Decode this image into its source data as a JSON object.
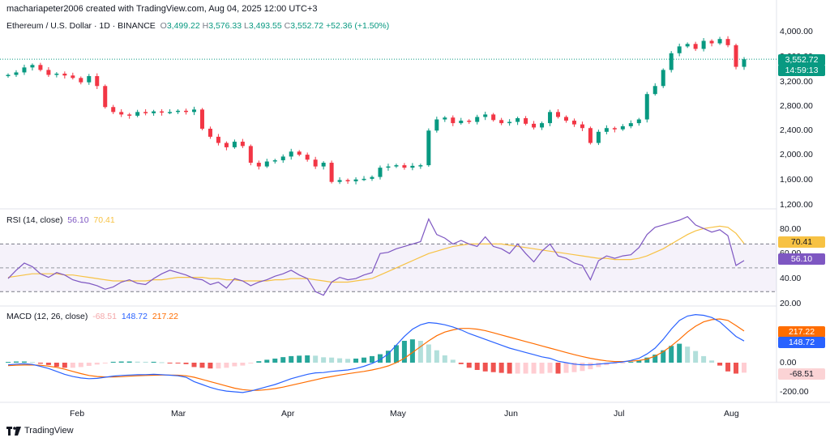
{
  "header": {
    "credit": "machariapeter2006 created with TradingView.com, Aug 04, 2025 12:00 UTC+3"
  },
  "symbol": {
    "name": "Ethereum / U.S. Dollar · 1D · BINANCE",
    "o_label": "O",
    "o": "3,499.22",
    "h_label": "H",
    "h": "3,576.33",
    "l_label": "L",
    "l": "3,493.55",
    "c_label": "C",
    "c": "3,552.72",
    "chg": "+52.36 (+1.50%)"
  },
  "price_axis": [
    "4,000.00",
    "3,600.00",
    "3,200.00",
    "2,800.00",
    "2,400.00",
    "2,000.00",
    "1,600.00",
    "1,200.00"
  ],
  "price_tag": {
    "value": "3,552.72",
    "countdown": "14:59:13"
  },
  "rsi": {
    "title": "RSI (14, close)",
    "v1": "56.10",
    "v2": "70.41",
    "axis": [
      "80.00",
      "60.00",
      "40.00",
      "20.00"
    ]
  },
  "macd": {
    "title": "MACD (12, 26, close)",
    "hist": "-68.51",
    "macd": "148.72",
    "signal": "217.22",
    "axis": [
      "0.00",
      "-200.00"
    ]
  },
  "months": [
    "Feb",
    "Mar",
    "Apr",
    "May",
    "Jun",
    "Jul",
    "Aug"
  ],
  "footer": {
    "brand": "TradingView"
  },
  "colors": {
    "up": "#089981",
    "down": "#f23645",
    "rsi": "#7e57c2",
    "rsi_ma": "#f7c244",
    "macd": "#2962ff",
    "signal": "#ff6d00",
    "hist_up": "#26a69a",
    "hist_down": "#ef5350"
  },
  "chart_data": {
    "type": "candlestick",
    "x_range": [
      "Jan 2025",
      "Aug 2025"
    ],
    "y_range": [
      1200,
      4000
    ],
    "closes": [
      3300,
      3340,
      3420,
      3460,
      3380,
      3300,
      3320,
      3290,
      3250,
      3180,
      3280,
      3120,
      2780,
      2700,
      2660,
      2640,
      2700,
      2680,
      2710,
      2690,
      2700,
      2720,
      2700,
      2740,
      2430,
      2300,
      2200,
      2130,
      2220,
      2150,
      1880,
      1820,
      1900,
      1920,
      1980,
      2060,
      2010,
      1930,
      1820,
      1880,
      1570,
      1600,
      1580,
      1610,
      1620,
      1650,
      1800,
      1820,
      1840,
      1800,
      1830,
      1840,
      2400,
      2580,
      2610,
      2520,
      2560,
      2540,
      2620,
      2660,
      2570,
      2520,
      2540,
      2600,
      2510,
      2450,
      2520,
      2700,
      2620,
      2560,
      2500,
      2440,
      2200,
      2380,
      2440,
      2420,
      2470,
      2520,
      2580,
      2990,
      3120,
      3380,
      3650,
      3760,
      3800,
      3720,
      3850,
      3810,
      3880,
      3780,
      3430,
      3552.72
    ],
    "rsi": [
      41,
      48,
      54,
      51,
      45,
      42,
      46,
      44,
      40,
      38,
      37,
      35,
      32,
      34,
      38,
      40,
      37,
      36,
      41,
      45,
      48,
      46,
      44,
      41,
      40,
      36,
      38,
      33,
      41,
      39,
      35,
      38,
      40,
      43,
      45,
      48,
      44,
      41,
      30,
      27,
      38,
      42,
      40,
      41,
      44,
      46,
      62,
      63,
      66,
      68,
      70,
      72,
      91,
      78,
      75,
      70,
      73,
      70,
      68,
      76,
      68,
      66,
      62,
      70,
      62,
      55,
      64,
      70,
      60,
      58,
      54,
      52,
      40,
      56,
      60,
      58,
      60,
      61,
      67,
      78,
      84,
      86,
      88,
      90,
      93,
      86,
      83,
      80,
      82,
      77,
      52,
      56.1
    ],
    "rsi_ma": [
      42,
      43,
      44,
      45,
      45,
      45,
      45,
      44,
      44,
      43,
      42,
      41,
      40,
      39,
      39,
      39,
      39,
      39,
      40,
      40,
      41,
      42,
      42,
      42,
      42,
      41,
      41,
      40,
      40,
      39,
      39,
      39,
      39,
      40,
      40,
      41,
      41,
      41,
      40,
      39,
      38,
      38,
      38,
      39,
      40,
      41,
      44,
      47,
      50,
      53,
      56,
      59,
      62,
      64,
      66,
      68,
      69,
      70,
      70,
      70,
      70,
      70,
      69,
      68,
      67,
      66,
      65,
      64,
      63,
      62,
      61,
      60,
      59,
      58,
      58,
      57,
      57,
      57,
      58,
      60,
      63,
      66,
      70,
      74,
      78,
      81,
      83,
      84,
      85,
      84,
      79,
      70.41
    ],
    "macd": [
      -15,
      -10,
      -8,
      -12,
      -25,
      -40,
      -60,
      -80,
      -95,
      -105,
      -110,
      -108,
      -100,
      -92,
      -88,
      -85,
      -83,
      -82,
      -80,
      -82,
      -86,
      -90,
      -100,
      -130,
      -150,
      -170,
      -185,
      -195,
      -200,
      -205,
      -195,
      -180,
      -165,
      -150,
      -130,
      -110,
      -95,
      -80,
      -70,
      -68,
      -60,
      -55,
      -50,
      -40,
      -25,
      -5,
      20,
      60,
      120,
      180,
      230,
      260,
      275,
      270,
      260,
      245,
      225,
      200,
      180,
      160,
      140,
      120,
      100,
      85,
      70,
      55,
      40,
      30,
      10,
      0,
      -10,
      -15,
      -15,
      -10,
      -5,
      0,
      5,
      15,
      30,
      60,
      100,
      160,
      230,
      290,
      320,
      330,
      325,
      310,
      280,
      230,
      180,
      148.72
    ],
    "signal": [
      -20,
      -18,
      -16,
      -16,
      -18,
      -24,
      -32,
      -45,
      -60,
      -75,
      -88,
      -95,
      -98,
      -98,
      -96,
      -93,
      -90,
      -88,
      -86,
      -85,
      -85,
      -86,
      -90,
      -100,
      -115,
      -130,
      -145,
      -160,
      -175,
      -185,
      -190,
      -190,
      -185,
      -178,
      -168,
      -155,
      -143,
      -130,
      -118,
      -105,
      -95,
      -85,
      -76,
      -68,
      -60,
      -50,
      -38,
      -22,
      0,
      30,
      70,
      110,
      150,
      185,
      210,
      225,
      235,
      235,
      230,
      220,
      205,
      190,
      175,
      160,
      145,
      130,
      115,
      100,
      85,
      70,
      55,
      42,
      30,
      20,
      12,
      8,
      8,
      10,
      15,
      25,
      45,
      75,
      115,
      160,
      210,
      250,
      280,
      295,
      300,
      290,
      255,
      217.22
    ],
    "hist_last": -68.51
  }
}
